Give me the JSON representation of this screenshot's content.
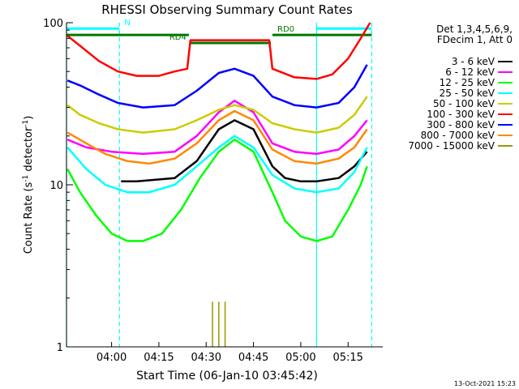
{
  "chart_data": {
    "type": "line",
    "title": "RHESSI Observing Summary Count Rates",
    "xlabel": "Start Time (06-Jan-10 03:45:42)",
    "ylabel_main": "Count Rate (s",
    "ylabel_sup": "-1",
    "ylabel_tail": " detector",
    "ylabel_end": ")",
    "y_scale": "log",
    "ylim": [
      1,
      100
    ],
    "xlim": [
      "03:45:42",
      "05:26:00"
    ],
    "y_ticks": [
      {
        "v": 1,
        "label": "1"
      },
      {
        "v": 10,
        "label": "10"
      },
      {
        "v": 100,
        "label": "100"
      }
    ],
    "x_ticks": [
      {
        "t": "04:00",
        "label": "04:00"
      },
      {
        "t": "04:15",
        "label": "04:15"
      },
      {
        "t": "04:30",
        "label": "04:30"
      },
      {
        "t": "04:45",
        "label": "04:45"
      },
      {
        "t": "05:00",
        "label": "05:00"
      },
      {
        "t": "05:15",
        "label": "05:15"
      }
    ],
    "legend": {
      "placement": "right",
      "header": [
        "Det 1,3,4,5,6,9,",
        "FDecim 1, Att 0"
      ],
      "entries": [
        {
          "label": "3 - 6 keV",
          "color": "#000000"
        },
        {
          "label": "6 - 12 keV",
          "color": "#ff00ff"
        },
        {
          "label": "12 - 25 keV",
          "color": "#00ff00"
        },
        {
          "label": "25 - 50 keV",
          "color": "#00ffff"
        },
        {
          "label": "50 - 100 keV",
          "color": "#cccc00"
        },
        {
          "label": "100 - 300 keV",
          "color": "#ff0000"
        },
        {
          "label": "300 - 800 keV",
          "color": "#0000ff"
        },
        {
          "label": "800 - 7000 keV",
          "color": "#ff8800"
        },
        {
          "label": "7000 - 15000 keV",
          "color": "#999900"
        }
      ]
    },
    "series": [
      {
        "name": "3 - 6 keV",
        "color": "#000000",
        "points": [
          [
            "04:03",
            10.5
          ],
          [
            "04:08",
            10.5
          ],
          [
            "04:20",
            11
          ],
          [
            "04:27",
            14
          ],
          [
            "04:34",
            22
          ],
          [
            "04:39",
            25
          ],
          [
            "04:45",
            22
          ],
          [
            "04:51",
            13
          ],
          [
            "04:55",
            11
          ],
          [
            "05:00",
            10.5
          ],
          [
            "05:05",
            10.5
          ],
          [
            "05:12",
            11
          ],
          [
            "05:17",
            13
          ],
          [
            "05:21",
            16
          ]
        ]
      },
      {
        "name": "6 - 12 keV",
        "color": "#ff00ff",
        "points": [
          [
            "03:46",
            19
          ],
          [
            "03:52",
            17
          ],
          [
            "04:00",
            16
          ],
          [
            "04:10",
            15.5
          ],
          [
            "04:20",
            16
          ],
          [
            "04:27",
            20
          ],
          [
            "04:34",
            28
          ],
          [
            "04:39",
            33
          ],
          [
            "04:45",
            28
          ],
          [
            "04:51",
            18
          ],
          [
            "04:58",
            16
          ],
          [
            "05:05",
            15.5
          ],
          [
            "05:12",
            16.5
          ],
          [
            "05:17",
            20
          ],
          [
            "05:21",
            25
          ]
        ]
      },
      {
        "name": "12 - 25 keV",
        "color": "#00ff00",
        "points": [
          [
            "03:46",
            12.5
          ],
          [
            "03:50",
            9
          ],
          [
            "03:55",
            6.5
          ],
          [
            "04:00",
            5
          ],
          [
            "04:05",
            4.5
          ],
          [
            "04:10",
            4.5
          ],
          [
            "04:16",
            5
          ],
          [
            "04:22",
            7
          ],
          [
            "04:28",
            11
          ],
          [
            "04:34",
            16
          ],
          [
            "04:39",
            19
          ],
          [
            "04:45",
            16
          ],
          [
            "04:51",
            9
          ],
          [
            "04:55",
            6
          ],
          [
            "05:00",
            4.8
          ],
          [
            "05:05",
            4.5
          ],
          [
            "05:10",
            4.8
          ],
          [
            "05:15",
            7
          ],
          [
            "05:19",
            10
          ],
          [
            "05:21",
            13
          ]
        ]
      },
      {
        "name": "25 - 50 keV",
        "color": "#00ffff",
        "points": [
          [
            "03:46",
            17
          ],
          [
            "03:52",
            12.5
          ],
          [
            "03:58",
            10
          ],
          [
            "04:05",
            9
          ],
          [
            "04:12",
            9
          ],
          [
            "04:20",
            10
          ],
          [
            "04:27",
            13
          ],
          [
            "04:34",
            17
          ],
          [
            "04:39",
            20
          ],
          [
            "04:45",
            17
          ],
          [
            "04:51",
            11.5
          ],
          [
            "04:58",
            9.5
          ],
          [
            "05:05",
            9
          ],
          [
            "05:12",
            9.5
          ],
          [
            "05:17",
            12
          ],
          [
            "05:21",
            17
          ]
        ]
      },
      {
        "name": "50 - 100 keV",
        "color": "#cccc00",
        "points": [
          [
            "03:46",
            31
          ],
          [
            "03:50",
            27
          ],
          [
            "03:56",
            24
          ],
          [
            "04:02",
            22
          ],
          [
            "04:10",
            21
          ],
          [
            "04:20",
            22
          ],
          [
            "04:27",
            25
          ],
          [
            "04:34",
            29
          ],
          [
            "04:39",
            31
          ],
          [
            "04:45",
            29
          ],
          [
            "04:51",
            24
          ],
          [
            "04:58",
            22
          ],
          [
            "05:05",
            21
          ],
          [
            "05:12",
            22.5
          ],
          [
            "05:17",
            27
          ],
          [
            "05:21",
            35
          ]
        ]
      },
      {
        "name": "100 - 300 keV",
        "color": "#ff0000",
        "points": [
          [
            "03:46",
            83
          ],
          [
            "03:50",
            72
          ],
          [
            "03:56",
            58
          ],
          [
            "04:02",
            50
          ],
          [
            "04:08",
            47
          ],
          [
            "04:15",
            47
          ],
          [
            "04:20",
            50
          ],
          [
            "04:24",
            52
          ],
          [
            "04:25",
            78
          ],
          [
            "04:50",
            78
          ],
          [
            "04:51",
            52
          ],
          [
            "04:58",
            46
          ],
          [
            "05:05",
            45
          ],
          [
            "05:10",
            48
          ],
          [
            "05:15",
            60
          ],
          [
            "05:19",
            80
          ],
          [
            "05:22",
            100
          ]
        ]
      },
      {
        "name": "300 - 800 keV",
        "color": "#0000ff",
        "points": [
          [
            "03:46",
            44
          ],
          [
            "03:50",
            41
          ],
          [
            "03:56",
            36
          ],
          [
            "04:02",
            32
          ],
          [
            "04:10",
            30
          ],
          [
            "04:20",
            31
          ],
          [
            "04:27",
            38
          ],
          [
            "04:34",
            49
          ],
          [
            "04:39",
            52
          ],
          [
            "04:45",
            47
          ],
          [
            "04:51",
            35
          ],
          [
            "04:58",
            31
          ],
          [
            "05:05",
            30
          ],
          [
            "05:12",
            32
          ],
          [
            "05:17",
            40
          ],
          [
            "05:21",
            55
          ]
        ]
      },
      {
        "name": "800 - 7000 keV",
        "color": "#ff8800",
        "points": [
          [
            "03:46",
            21
          ],
          [
            "03:52",
            18
          ],
          [
            "03:58",
            15.5
          ],
          [
            "04:05",
            14
          ],
          [
            "04:12",
            13.5
          ],
          [
            "04:20",
            14.5
          ],
          [
            "04:27",
            18
          ],
          [
            "04:34",
            25
          ],
          [
            "04:39",
            28.5
          ],
          [
            "04:45",
            25
          ],
          [
            "04:51",
            16.5
          ],
          [
            "04:58",
            14
          ],
          [
            "05:05",
            13.5
          ],
          [
            "05:12",
            14.5
          ],
          [
            "05:17",
            17
          ],
          [
            "05:21",
            22
          ]
        ]
      },
      {
        "name": "7000 - 15000 keV",
        "color": "#999900",
        "spikes": [
          [
            "04:32",
            1.9
          ],
          [
            "04:34",
            1.9
          ],
          [
            "04:36",
            1.9
          ]
        ]
      }
    ],
    "annotations": {
      "top_bars": [
        {
          "label": "N",
          "color": "#00ffff",
          "start": "03:45:42",
          "end": "04:02:30",
          "level": 92
        },
        {
          "label": "",
          "color": "#00ffff",
          "start": "05:05:00",
          "end": "05:22:30",
          "level": 92
        },
        {
          "label": "",
          "color": "#007700",
          "start": "03:45:42",
          "end": "04:24:30",
          "level": 84
        },
        {
          "label": "RD4",
          "color": "#007700",
          "start": "04:25:00",
          "end": "04:50:30",
          "level": 75
        },
        {
          "label": "RD0",
          "color": "#007700",
          "start": "04:51:00",
          "end": "05:22:30",
          "level": 84
        }
      ],
      "vlines": [
        {
          "t": "03:45:42",
          "color": "#00ffff",
          "style": "solid"
        },
        {
          "t": "04:02:30",
          "color": "#00ffff",
          "style": "dashed"
        },
        {
          "t": "05:05:00",
          "color": "#00ffff",
          "style": "solid"
        },
        {
          "t": "05:22:30",
          "color": "#00ffff",
          "style": "dashed"
        }
      ]
    },
    "footer": "13-Oct-2021 15:23"
  }
}
